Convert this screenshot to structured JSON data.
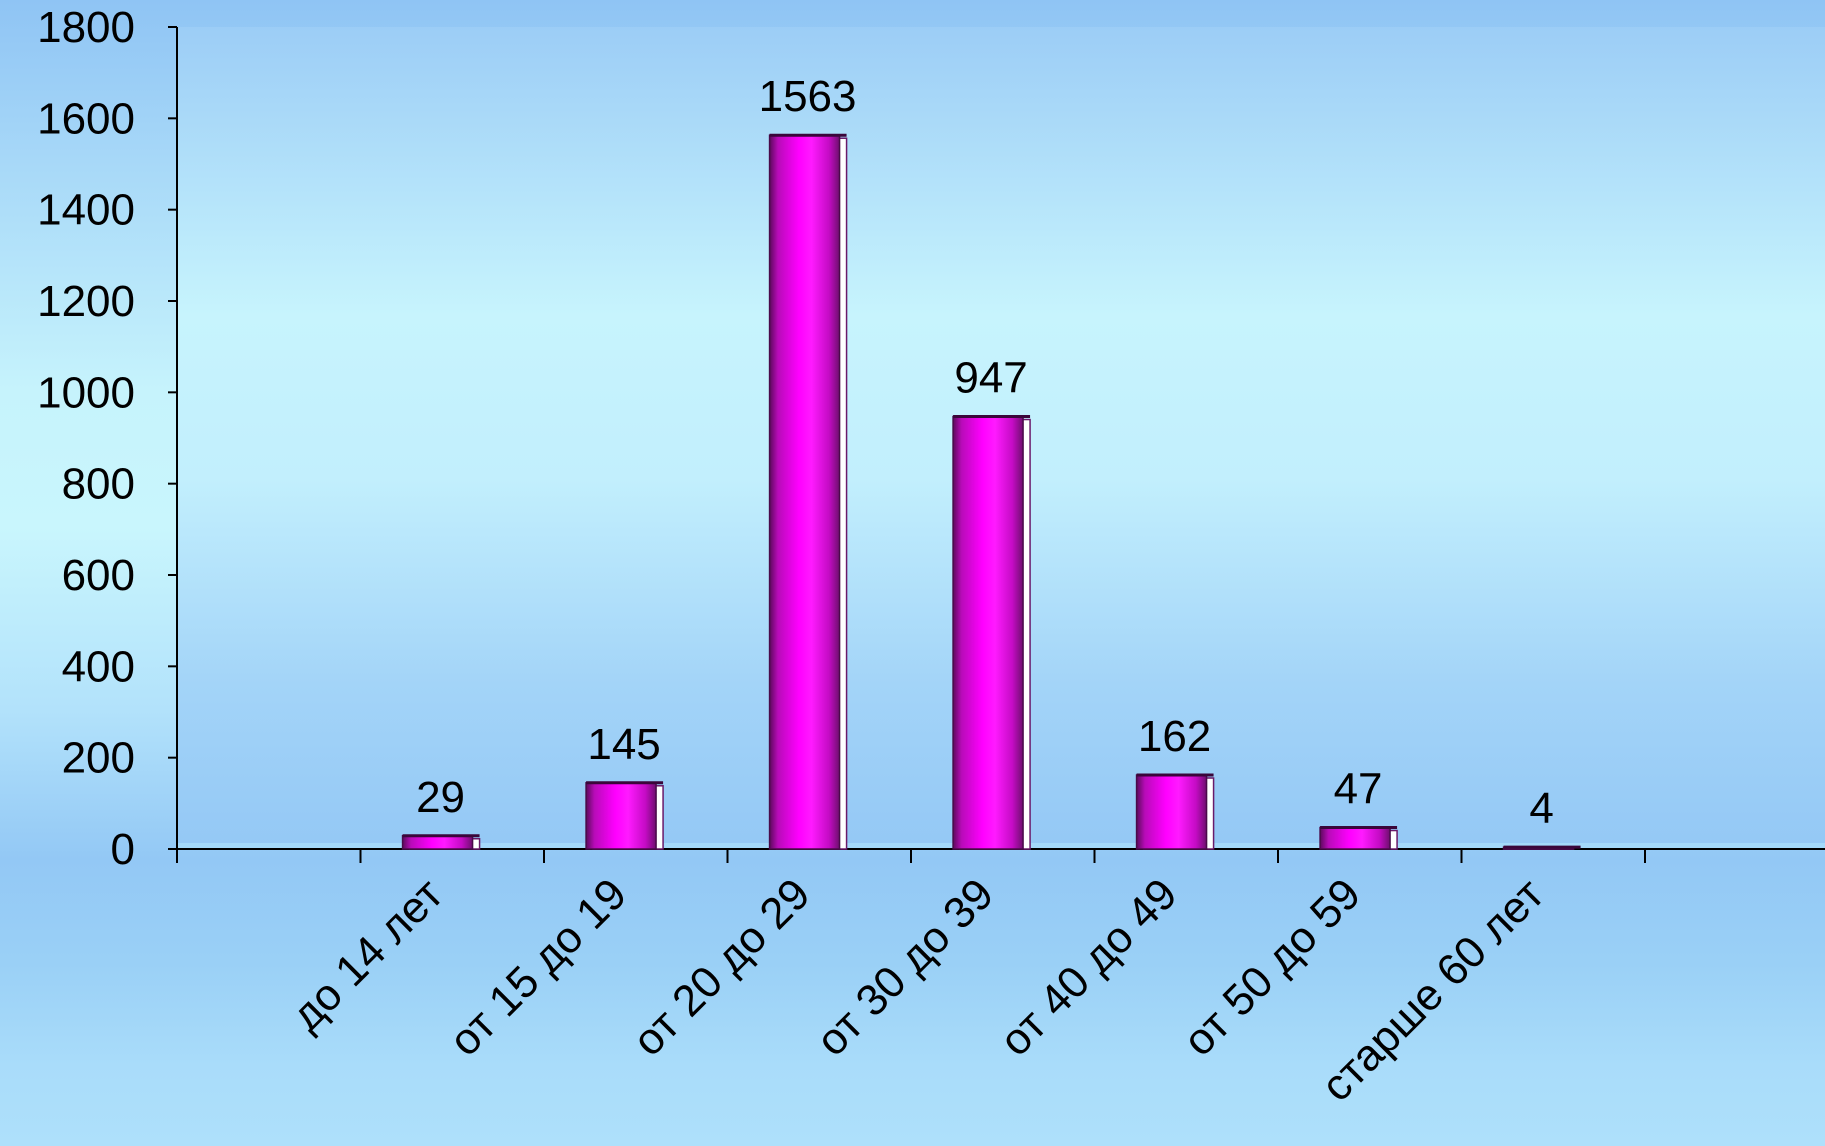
{
  "chart_data": {
    "type": "bar",
    "title": "",
    "xlabel": "",
    "ylabel": "",
    "categories": [
      "до 14 лет",
      "от 15 до 19",
      "от 20 до 29",
      "от 30 до 39",
      "от 40 до 49",
      "от 50 до 59",
      "старше 60 лет"
    ],
    "values": [
      29,
      145,
      1563,
      947,
      162,
      47,
      4
    ],
    "ylim": [
      0,
      1800
    ],
    "yticks": [
      0,
      200,
      400,
      600,
      800,
      1000,
      1200,
      1400,
      1600,
      1800
    ],
    "data_labels": true,
    "grid": false,
    "legend": "none",
    "colors": {
      "bar": "#ff00ff",
      "bar_dark": "#7a0f78",
      "axis": "#000000",
      "plot_area": "#b9ecfc"
    }
  }
}
